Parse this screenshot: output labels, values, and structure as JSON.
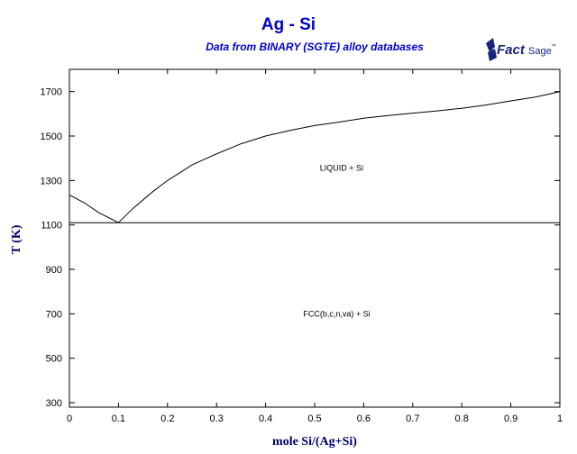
{
  "chart_data": {
    "type": "line",
    "title": "Ag - Si",
    "subtitle": "Data from BINARY (SGTE) alloy databases",
    "xlabel": "mole Si/(Ag+Si)",
    "ylabel": "T (K)",
    "xlim": [
      0,
      1
    ],
    "ylim": [
      280,
      1800
    ],
    "x_ticks": [
      0,
      0.1,
      0.2,
      0.3,
      0.4,
      0.5,
      0.6,
      0.7,
      0.8,
      0.9,
      1
    ],
    "x_tick_labels": [
      "0",
      "0.1",
      "0.2",
      "0.3",
      "0.4",
      "0.5",
      "0.6",
      "0.7",
      "0.8",
      "0.9",
      "1"
    ],
    "y_ticks": [
      300,
      500,
      700,
      900,
      1100,
      1300,
      1500,
      1700
    ],
    "y_tick_labels": [
      "300",
      "500",
      "700",
      "900",
      "1100",
      "1300",
      "1500",
      "1700"
    ],
    "series": [
      {
        "x": [
          0.0,
          0.03,
          0.06,
          0.1
        ],
        "y": [
          1235,
          1200,
          1155,
          1110
        ]
      },
      {
        "x": [
          0.1,
          0.13,
          0.17,
          0.2,
          0.25,
          0.3,
          0.35,
          0.4,
          0.45,
          0.5,
          0.55,
          0.6,
          0.65,
          0.7,
          0.75,
          0.8,
          0.85,
          0.9,
          0.95,
          1.0
        ],
        "y": [
          1110,
          1175,
          1250,
          1300,
          1370,
          1420,
          1465,
          1500,
          1525,
          1547,
          1563,
          1580,
          1592,
          1603,
          1613,
          1625,
          1640,
          1658,
          1675,
          1700
        ]
      },
      {
        "x": [
          0,
          1
        ],
        "y": [
          1110,
          1110
        ]
      }
    ],
    "annotations": [
      {
        "text": "LIQUID + Si",
        "x": 0.555,
        "y": 1343
      },
      {
        "text": "FCC(b,c,n,va) + Si",
        "x": 0.545,
        "y": 687
      }
    ]
  },
  "logo": {
    "text": "FactSage",
    "trademark": "™",
    "color": "#1a237e"
  }
}
